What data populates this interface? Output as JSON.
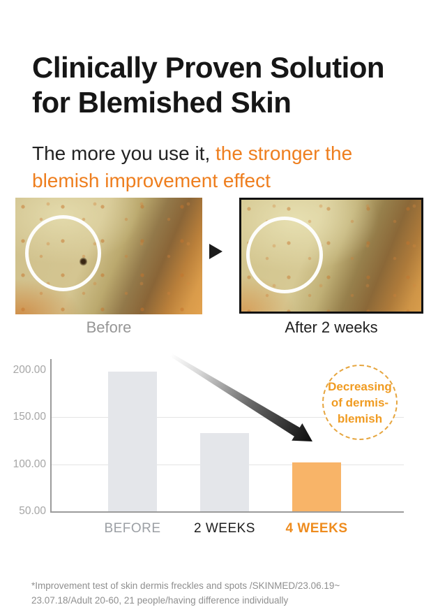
{
  "header": {
    "title": "Clinically Proven Solution for Blemished Skin",
    "subtitle_plain": "The more you use it, ",
    "subtitle_highlight": "the stronger the blemish improvement effect"
  },
  "comparison": {
    "before_caption": "Before",
    "after_caption": "After 2 weeks",
    "arrow_icon": "play-right-triangle"
  },
  "chart_data": {
    "type": "bar",
    "categories": [
      "BEFORE",
      "2 WEEKS",
      "4 WEEKS"
    ],
    "values": [
      198,
      133,
      102
    ],
    "title": "",
    "xlabel": "",
    "ylabel": "",
    "ylim": [
      50,
      215
    ],
    "ytick_labels": [
      "200.00",
      "150.00",
      "100.00",
      "50.00"
    ],
    "ytick_values": [
      200,
      150,
      100,
      50
    ],
    "grid": "horizontal gridlines at 150 and 100, baseline at 50",
    "legend": "none",
    "bar_colors": [
      "#e4e6ea",
      "#e4e6ea",
      "#f8b468"
    ],
    "category_colors": [
      "#9b9fa4",
      "#1e1e1e",
      "#ee8c1f"
    ],
    "category_bold": [
      false,
      false,
      true
    ],
    "annotation": "Decreasing\nof dermis-\nblemish",
    "annotation_color": "#f09b21",
    "trend_arrow": "black gradient arrow pointing down-right"
  },
  "footnote": "*Improvement test of skin dermis freckles and spots /SKINMED/23.06.19~\n23.07.18/Adult 20-60, 21 people/having difference individually",
  "colors": {
    "accent_orange": "#ee7e1e",
    "bar_gray": "#e4e6ea",
    "bar_orange": "#f8b468",
    "badge_border": "#e6a53e"
  }
}
